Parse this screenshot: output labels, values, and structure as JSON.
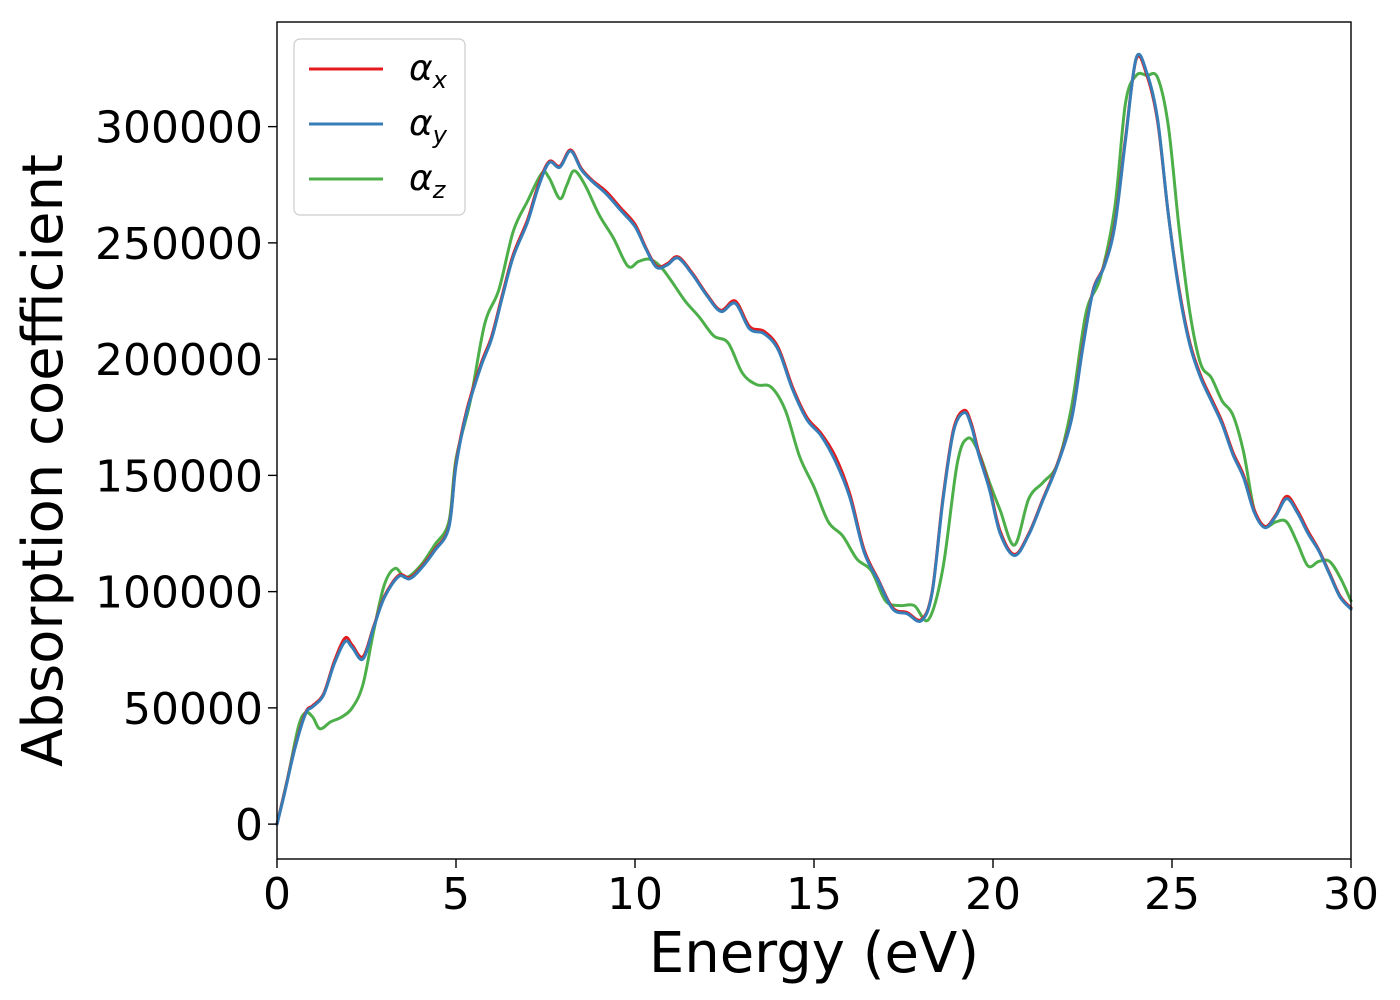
{
  "chart_data": {
    "type": "line",
    "title": "",
    "xlabel": "Energy (eV)",
    "ylabel": "Absorption coefficient",
    "xlim": [
      0,
      30
    ],
    "ylim": [
      -15000,
      345000
    ],
    "xticks": [
      0,
      5,
      10,
      15,
      20,
      25,
      30
    ],
    "yticks": [
      0,
      50000,
      100000,
      150000,
      200000,
      250000,
      300000
    ],
    "grid": false,
    "legend_position": "top-left",
    "series": [
      {
        "name": "αx",
        "symbol": "α",
        "subscript": "x",
        "color": "#e41a1c",
        "x": [
          0,
          0.2,
          0.5,
          0.8,
          1.0,
          1.3,
          1.6,
          1.9,
          2.1,
          2.4,
          2.7,
          3.0,
          3.4,
          3.7,
          4.0,
          4.4,
          4.8,
          5.0,
          5.3,
          5.7,
          6.0,
          6.3,
          6.6,
          7.0,
          7.3,
          7.6,
          7.9,
          8.2,
          8.5,
          8.8,
          9.2,
          9.6,
          10.0,
          10.3,
          10.6,
          10.9,
          11.2,
          11.6,
          12.0,
          12.4,
          12.8,
          13.2,
          13.6,
          14.0,
          14.4,
          14.8,
          15.2,
          15.6,
          16.0,
          16.4,
          16.8,
          17.2,
          17.6,
          18.0,
          18.3,
          18.6,
          18.9,
          19.2,
          19.4,
          19.6,
          19.9,
          20.2,
          20.6,
          21.0,
          21.4,
          21.8,
          22.2,
          22.5,
          22.8,
          23.1,
          23.4,
          23.7,
          24.0,
          24.3,
          24.6,
          24.9,
          25.2,
          25.5,
          25.8,
          26.1,
          26.4,
          26.7,
          27.0,
          27.3,
          27.6,
          27.9,
          28.2,
          28.5,
          28.8,
          29.1,
          29.4,
          29.7,
          30.0
        ],
        "values": [
          0,
          13000,
          33000,
          48000,
          51000,
          56000,
          70000,
          80000,
          77000,
          72000,
          85000,
          98000,
          107000,
          106000,
          110000,
          118000,
          128000,
          155000,
          178000,
          198000,
          210000,
          228000,
          245000,
          260000,
          275000,
          285000,
          283000,
          290000,
          282000,
          277000,
          272000,
          265000,
          258000,
          248000,
          240000,
          241000,
          244000,
          237000,
          228000,
          221000,
          225000,
          214000,
          212000,
          205000,
          188000,
          175000,
          168000,
          158000,
          142000,
          118000,
          105000,
          93000,
          91000,
          88000,
          100000,
          140000,
          170000,
          178000,
          172000,
          160000,
          145000,
          126000,
          116000,
          125000,
          140000,
          155000,
          175000,
          205000,
          230000,
          240000,
          258000,
          295000,
          329000,
          322000,
          302000,
          262000,
          230000,
          207000,
          193000,
          183000,
          173000,
          160000,
          150000,
          135000,
          128000,
          133000,
          141000,
          135000,
          126000,
          118000,
          108000,
          98000,
          93000
        ]
      },
      {
        "name": "αy",
        "symbol": "α",
        "subscript": "y",
        "color": "#377eb8",
        "x": [
          0,
          0.2,
          0.5,
          0.8,
          1.0,
          1.3,
          1.6,
          1.9,
          2.1,
          2.4,
          2.7,
          3.0,
          3.4,
          3.7,
          4.0,
          4.4,
          4.8,
          5.0,
          5.3,
          5.7,
          6.0,
          6.3,
          6.6,
          7.0,
          7.3,
          7.6,
          7.9,
          8.2,
          8.5,
          8.8,
          9.2,
          9.6,
          10.0,
          10.3,
          10.6,
          10.9,
          11.2,
          11.6,
          12.0,
          12.4,
          12.8,
          13.2,
          13.6,
          14.0,
          14.4,
          14.8,
          15.2,
          15.6,
          16.0,
          16.4,
          16.8,
          17.2,
          17.6,
          18.0,
          18.3,
          18.6,
          18.9,
          19.2,
          19.4,
          19.6,
          19.9,
          20.2,
          20.6,
          21.0,
          21.4,
          21.8,
          22.2,
          22.5,
          22.8,
          23.1,
          23.4,
          23.7,
          24.0,
          24.3,
          24.6,
          24.9,
          25.2,
          25.5,
          25.8,
          26.1,
          26.4,
          26.7,
          27.0,
          27.3,
          27.6,
          27.9,
          28.2,
          28.5,
          28.8,
          29.1,
          29.4,
          29.7,
          30.0
        ],
        "values": [
          0,
          12500,
          32500,
          47500,
          50500,
          55500,
          69000,
          78500,
          76000,
          71000,
          84500,
          97500,
          106500,
          105500,
          109500,
          117500,
          127500,
          154000,
          177000,
          197000,
          209000,
          227000,
          244000,
          259000,
          274000,
          284500,
          282500,
          289500,
          281500,
          276500,
          271000,
          264000,
          257000,
          247500,
          239500,
          240500,
          243500,
          236500,
          227500,
          220500,
          224000,
          213000,
          211000,
          204000,
          187000,
          174000,
          167000,
          156000,
          140500,
          117000,
          104500,
          92500,
          90500,
          87500,
          99500,
          139000,
          169000,
          177000,
          171000,
          159000,
          144000,
          125000,
          115500,
          124500,
          139500,
          154500,
          174500,
          204000,
          229500,
          239500,
          257000,
          294000,
          329500,
          323000,
          303000,
          262000,
          229000,
          206000,
          192000,
          182000,
          172000,
          159000,
          149000,
          134000,
          127500,
          132500,
          140000,
          134000,
          125000,
          117500,
          107500,
          97500,
          92500
        ]
      },
      {
        "name": "αz",
        "symbol": "α",
        "subscript": "z",
        "color": "#4daf4a",
        "x": [
          0,
          0.3,
          0.6,
          0.8,
          1.0,
          1.2,
          1.5,
          1.8,
          2.1,
          2.4,
          2.7,
          3.0,
          3.3,
          3.6,
          4.0,
          4.4,
          4.8,
          5.0,
          5.4,
          5.8,
          6.2,
          6.6,
          7.0,
          7.4,
          7.6,
          7.9,
          8.1,
          8.3,
          8.6,
          9.0,
          9.4,
          9.8,
          10.1,
          10.4,
          10.7,
          11.0,
          11.4,
          11.8,
          12.2,
          12.6,
          13.0,
          13.4,
          13.8,
          14.2,
          14.6,
          15.0,
          15.4,
          15.8,
          16.2,
          16.6,
          17.0,
          17.4,
          17.8,
          18.2,
          18.6,
          19.0,
          19.3,
          19.6,
          19.9,
          20.2,
          20.6,
          21.0,
          21.4,
          21.8,
          22.2,
          22.6,
          23.0,
          23.4,
          23.7,
          24.0,
          24.3,
          24.6,
          24.9,
          25.2,
          25.5,
          25.8,
          26.1,
          26.4,
          26.7,
          27.0,
          27.3,
          27.6,
          27.9,
          28.2,
          28.5,
          28.8,
          29.1,
          29.4,
          29.7,
          30.0
        ],
        "values": [
          0,
          20000,
          42000,
          48000,
          46000,
          41000,
          44000,
          46000,
          50000,
          60000,
          83000,
          103000,
          110000,
          106000,
          111000,
          120000,
          130000,
          157000,
          182000,
          215000,
          230000,
          255000,
          268000,
          280000,
          278000,
          269000,
          275000,
          281000,
          275000,
          262000,
          252000,
          240000,
          242000,
          243000,
          240000,
          234000,
          225000,
          218000,
          210000,
          207000,
          194000,
          189000,
          188000,
          178000,
          158000,
          145000,
          130000,
          124000,
          114000,
          109000,
          96000,
          94000,
          94000,
          88000,
          110000,
          155000,
          166000,
          160000,
          147000,
          135000,
          120000,
          140000,
          147000,
          155000,
          180000,
          220000,
          235000,
          265000,
          310000,
          322000,
          322000,
          321000,
          300000,
          256000,
          220000,
          198000,
          192000,
          182000,
          176000,
          160000,
          135000,
          128000,
          130000,
          130000,
          121000,
          111000,
          113000,
          113000,
          106000,
          96000
        ]
      }
    ]
  }
}
